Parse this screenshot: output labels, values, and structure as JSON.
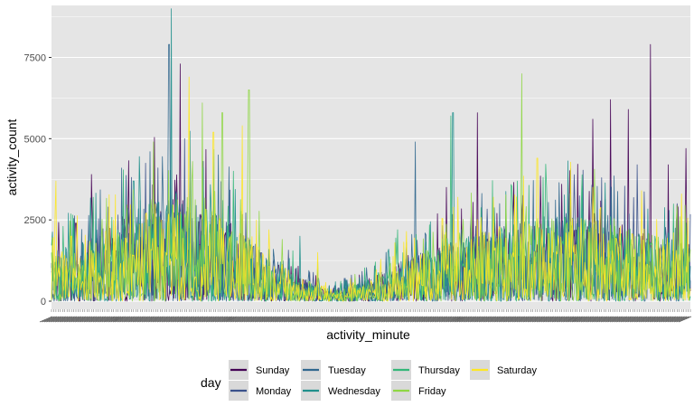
{
  "chart_data": {
    "type": "line",
    "title": "",
    "xlabel": "activity_minute",
    "ylabel": "activity_count",
    "x_range": [
      0,
      1440
    ],
    "ylim": [
      -250,
      9100
    ],
    "yticks": [
      0,
      2500,
      5000,
      7500
    ],
    "ytick_labels": [
      "0",
      "2500",
      "5000",
      "7500"
    ],
    "grid": true,
    "legend": {
      "title": "day",
      "position": "bottom"
    },
    "series": [
      {
        "name": "Sunday",
        "color": "#440154",
        "peaks": [
          [
            55,
            2400
          ],
          [
            90,
            3900
          ],
          [
            160,
            2600
          ],
          [
            290,
            7300
          ],
          [
            550,
            1000
          ],
          [
            890,
            3500
          ],
          [
            960,
            5800
          ],
          [
            1060,
            2800
          ],
          [
            1150,
            3600
          ],
          [
            1220,
            5600
          ],
          [
            1260,
            6200
          ],
          [
            1300,
            5900
          ],
          [
            1350,
            7900
          ],
          [
            1390,
            4200
          ],
          [
            1430,
            4700
          ],
          [
            1450,
            2900
          ]
        ]
      },
      {
        "name": "Monday",
        "color": "#3b528b",
        "peaks": [
          [
            110,
            2000
          ],
          [
            240,
            4100
          ],
          [
            300,
            5000
          ],
          [
            420,
            1500
          ],
          [
            600,
            700
          ],
          [
            900,
            1800
          ],
          [
            1020,
            2300
          ],
          [
            1180,
            2800
          ],
          [
            1240,
            3800
          ],
          [
            1320,
            4200
          ],
          [
            1410,
            3000
          ]
        ]
      },
      {
        "name": "Tuesday",
        "color": "#31688e",
        "peaks": [
          [
            40,
            1500
          ],
          [
            100,
            2100
          ],
          [
            200,
            3100
          ],
          [
            265,
            7900
          ],
          [
            330,
            2400
          ],
          [
            500,
            1600
          ],
          [
            700,
            800
          ],
          [
            820,
            4900
          ],
          [
            1010,
            3000
          ],
          [
            1110,
            2600
          ],
          [
            1340,
            1800
          ]
        ]
      },
      {
        "name": "Wednesday",
        "color": "#21908c",
        "peaks": [
          [
            70,
            1800
          ],
          [
            185,
            3700
          ],
          [
            270,
            9000
          ],
          [
            380,
            2200
          ],
          [
            560,
            2000
          ],
          [
            640,
            600
          ],
          [
            760,
            1600
          ],
          [
            905,
            5800
          ],
          [
            1000,
            2100
          ],
          [
            1150,
            2000
          ],
          [
            1280,
            1700
          ],
          [
            1390,
            2100
          ]
        ]
      },
      {
        "name": "Thursday",
        "color": "#35b779",
        "peaks": [
          [
            50,
            1600
          ],
          [
            150,
            2200
          ],
          [
            280,
            3300
          ],
          [
            410,
            4000
          ],
          [
            600,
            1200
          ],
          [
            780,
            2200
          ],
          [
            900,
            5700
          ],
          [
            1050,
            3700
          ],
          [
            1120,
            2300
          ],
          [
            1260,
            2600
          ],
          [
            1360,
            2000
          ]
        ]
      },
      {
        "name": "Friday",
        "color": "#8fd744",
        "peaks": [
          [
            130,
            2300
          ],
          [
            230,
            4900
          ],
          [
            340,
            6100
          ],
          [
            385,
            5800
          ],
          [
            445,
            6500
          ],
          [
            520,
            1900
          ],
          [
            680,
            400
          ],
          [
            920,
            2100
          ],
          [
            1060,
            7000
          ],
          [
            1200,
            2500
          ],
          [
            1300,
            2200
          ],
          [
            1420,
            2600
          ]
        ]
      },
      {
        "name": "Saturday",
        "color": "#fde725",
        "peaks": [
          [
            10,
            3700
          ],
          [
            45,
            2000
          ],
          [
            140,
            2500
          ],
          [
            310,
            6900
          ],
          [
            365,
            5200
          ],
          [
            430,
            5400
          ],
          [
            490,
            2200
          ],
          [
            600,
            1500
          ],
          [
            1010,
            2300
          ],
          [
            1095,
            4400
          ],
          [
            1160,
            2100
          ],
          [
            1330,
            3400
          ],
          [
            1420,
            3300
          ],
          [
            1470,
            5700
          ]
        ]
      }
    ]
  }
}
